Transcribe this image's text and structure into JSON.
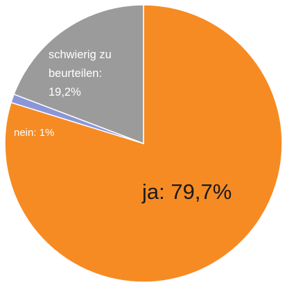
{
  "chart_data": {
    "type": "pie",
    "title": "",
    "slices": [
      {
        "label": "ja",
        "value": 79.7,
        "text": "ja: 79,7%",
        "color": "#f68b24"
      },
      {
        "label": "nein",
        "value": 1.0,
        "text": "nein: 1%",
        "color": "#8a96d8"
      },
      {
        "label": "schwierig zu beurteilen",
        "value": 19.2,
        "text_lines": [
          "schwierig zu",
          "beurteilen:",
          "19,2%"
        ],
        "color": "#9b9b9b"
      }
    ],
    "legend": "none",
    "label_colors": {
      "ja": "#1a1a1a",
      "nein": "#ffffff",
      "schwierig zu beurteilen": "#ffffff"
    }
  }
}
